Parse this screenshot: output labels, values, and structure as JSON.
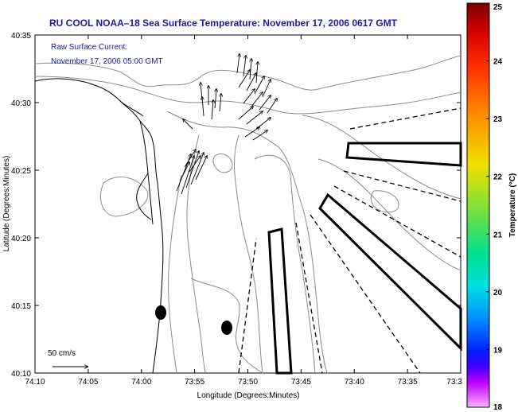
{
  "chart_data": {
    "type": "map",
    "title": "RU COOL  NOAA–18  Sea Surface Temperature:  November 17, 2006 0617 GMT",
    "annotation": {
      "line1": "Raw Surface Current:",
      "line2": "November 17, 2006 05:00 GMT"
    },
    "xlabel": "Longitude (Degrees:Minutes)",
    "ylabel": "Latitude (Degrees:Minutes)",
    "x_ticks": [
      "74:10",
      "74:05",
      "74:00",
      "73:55",
      "73:50",
      "73:45",
      "73:40",
      "73:35",
      "73:3"
    ],
    "y_ticks": [
      "40:35",
      "40:30",
      "40:25",
      "40:20",
      "40:15",
      "40:10"
    ],
    "scale_label": "50 cm/s",
    "colorbar": {
      "label": "Temperature (°C)",
      "ticks": [
        "25",
        "24",
        "23",
        "22",
        "21",
        "20",
        "19",
        "18"
      ],
      "range": [
        18,
        25
      ]
    },
    "grid": false
  },
  "colors": {
    "title": "#1a1aa8",
    "contour": "#8c8c8c",
    "coast": "#000000"
  }
}
